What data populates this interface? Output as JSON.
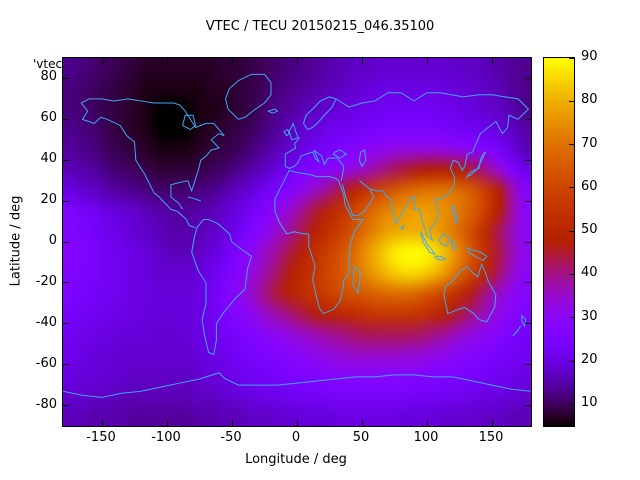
{
  "title": "VTEC / TECU 20150215_046.35100",
  "key_label": "'vtec_",
  "axes": {
    "xlabel": "Longitude / deg",
    "ylabel": "Latitude / deg",
    "xlim": [
      -180,
      180
    ],
    "ylim": [
      -90,
      90
    ],
    "x_ticks": [
      -150,
      -100,
      -50,
      0,
      50,
      100,
      150
    ],
    "y_ticks": [
      80,
      60,
      40,
      20,
      0,
      -20,
      -40,
      -60,
      -80
    ]
  },
  "colorbar": {
    "range": [
      5,
      90
    ],
    "ticks": [
      90,
      80,
      70,
      60,
      50,
      40,
      30,
      20,
      10
    ],
    "palette": "gnuplot rgbformulae 7,5,15 (black-purple-violet-red-orange-yellow)"
  },
  "chart_data": {
    "type": "heatmap",
    "title": "VTEC / TECU 20150215_046.35100",
    "xlabel": "Longitude / deg",
    "ylabel": "Latitude / deg",
    "units": "TECU",
    "value_range": [
      5,
      90
    ],
    "grid": {
      "lon_centers_start": -175,
      "lon_step": 10,
      "lat_centers_start": 85,
      "lat_step": -10,
      "cols": 36,
      "rows": 18
    },
    "values": [
      [
        13,
        12,
        11,
        10,
        9,
        8,
        7,
        7,
        7,
        7,
        7,
        7,
        8,
        8,
        9,
        10,
        11,
        12,
        13,
        14,
        15,
        16,
        17,
        17,
        18,
        18,
        18,
        18,
        18,
        18,
        17,
        17,
        16,
        15,
        14,
        13
      ],
      [
        12,
        11,
        10,
        9,
        8,
        7,
        6,
        6,
        6,
        6,
        6,
        7,
        7,
        8,
        9,
        10,
        12,
        13,
        14,
        15,
        16,
        17,
        18,
        19,
        20,
        20,
        20,
        20,
        20,
        19,
        19,
        18,
        17,
        16,
        14,
        13
      ],
      [
        12,
        11,
        10,
        9,
        8,
        7,
        6,
        5,
        5,
        5,
        6,
        6,
        7,
        8,
        9,
        11,
        13,
        14,
        16,
        17,
        18,
        19,
        20,
        21,
        22,
        22,
        22,
        22,
        22,
        21,
        20,
        19,
        18,
        17,
        15,
        13
      ],
      [
        13,
        12,
        11,
        9,
        8,
        7,
        6,
        5,
        5,
        5,
        6,
        7,
        8,
        9,
        10,
        12,
        14,
        16,
        18,
        19,
        21,
        22,
        23,
        24,
        25,
        25,
        25,
        25,
        25,
        24,
        23,
        22,
        21,
        19,
        17,
        15
      ],
      [
        14,
        13,
        12,
        10,
        9,
        8,
        7,
        6,
        6,
        6,
        7,
        8,
        9,
        10,
        12,
        14,
        16,
        18,
        20,
        22,
        24,
        26,
        28,
        30,
        31,
        32,
        33,
        33,
        33,
        32,
        31,
        29,
        27,
        24,
        20,
        16
      ],
      [
        16,
        15,
        14,
        12,
        11,
        10,
        9,
        8,
        8,
        8,
        9,
        10,
        11,
        13,
        15,
        17,
        20,
        22,
        25,
        27,
        29,
        31,
        34,
        37,
        40,
        43,
        45,
        47,
        48,
        48,
        47,
        44,
        40,
        34,
        27,
        21
      ],
      [
        20,
        18,
        17,
        15,
        14,
        13,
        12,
        11,
        11,
        11,
        12,
        13,
        15,
        17,
        19,
        22,
        25,
        28,
        32,
        36,
        40,
        45,
        50,
        56,
        61,
        65,
        68,
        70,
        71,
        71,
        69,
        65,
        58,
        48,
        38,
        28
      ],
      [
        26,
        24,
        22,
        20,
        19,
        18,
        16,
        15,
        14,
        14,
        15,
        16,
        18,
        20,
        23,
        27,
        31,
        35,
        40,
        45,
        50,
        55,
        61,
        67,
        72,
        75,
        77,
        78,
        77,
        75,
        71,
        66,
        58,
        48,
        38,
        30
      ],
      [
        27,
        25,
        23,
        21,
        20,
        18,
        17,
        16,
        15,
        15,
        16,
        17,
        19,
        22,
        26,
        30,
        35,
        39,
        44,
        49,
        54,
        59,
        65,
        71,
        76,
        79,
        80,
        80,
        78,
        74,
        68,
        61,
        52,
        43,
        36,
        30
      ],
      [
        28,
        26,
        24,
        22,
        21,
        20,
        19,
        17,
        16,
        16,
        17,
        19,
        22,
        26,
        30,
        35,
        39,
        44,
        49,
        54,
        59,
        64,
        70,
        77,
        83,
        88,
        90,
        90,
        87,
        81,
        73,
        63,
        53,
        44,
        37,
        31
      ],
      [
        27,
        25,
        24,
        22,
        21,
        20,
        19,
        18,
        18,
        18,
        19,
        21,
        24,
        28,
        33,
        37,
        42,
        47,
        52,
        56,
        61,
        65,
        70,
        75,
        80,
        84,
        86,
        85,
        82,
        76,
        68,
        59,
        50,
        42,
        35,
        30
      ],
      [
        26,
        24,
        23,
        22,
        21,
        20,
        20,
        19,
        19,
        19,
        20,
        22,
        26,
        30,
        35,
        40,
        45,
        49,
        53,
        56,
        59,
        62,
        64,
        66,
        68,
        69,
        69,
        67,
        63,
        58,
        52,
        46,
        40,
        35,
        31,
        28
      ],
      [
        24,
        23,
        22,
        21,
        20,
        20,
        19,
        19,
        19,
        19,
        20,
        22,
        25,
        28,
        31,
        35,
        38,
        41,
        44,
        47,
        49,
        51,
        53,
        55,
        56,
        57,
        56,
        55,
        52,
        48,
        44,
        40,
        36,
        32,
        29,
        26
      ],
      [
        22,
        21,
        20,
        20,
        19,
        19,
        19,
        18,
        18,
        19,
        20,
        21,
        23,
        25,
        27,
        29,
        31,
        33,
        35,
        37,
        39,
        40,
        42,
        43,
        43,
        43,
        43,
        42,
        40,
        38,
        35,
        33,
        30,
        28,
        25,
        23
      ],
      [
        21,
        20,
        19,
        19,
        18,
        18,
        18,
        18,
        18,
        18,
        19,
        20,
        21,
        23,
        24,
        26,
        27,
        29,
        30,
        32,
        33,
        34,
        35,
        35,
        35,
        35,
        34,
        34,
        32,
        31,
        29,
        28,
        26,
        24,
        23,
        22
      ],
      [
        20,
        19,
        19,
        18,
        18,
        17,
        17,
        17,
        17,
        17,
        18,
        19,
        20,
        21,
        22,
        23,
        24,
        25,
        26,
        27,
        28,
        29,
        29,
        29,
        29,
        29,
        28,
        28,
        27,
        26,
        25,
        24,
        23,
        22,
        21,
        20
      ],
      [
        18,
        18,
        17,
        17,
        16,
        16,
        16,
        16,
        16,
        16,
        17,
        17,
        18,
        19,
        20,
        21,
        21,
        22,
        23,
        23,
        24,
        24,
        24,
        24,
        24,
        24,
        24,
        23,
        23,
        22,
        22,
        21,
        20,
        20,
        19,
        18
      ],
      [
        16,
        16,
        15,
        15,
        15,
        14,
        14,
        14,
        14,
        14,
        15,
        15,
        16,
        16,
        17,
        17,
        18,
        18,
        19,
        19,
        19,
        20,
        20,
        20,
        20,
        20,
        19,
        19,
        19,
        18,
        18,
        18,
        17,
        17,
        16,
        16
      ]
    ]
  },
  "coastlines": {
    "color": "#3fa9f5",
    "paths": [
      "M -166,-68 L -161,-64 -165,-60 -156,-58 -151,-61 -146,-60 -136,-57 -131,-52 -125,-49 -124,-40 -117,-33 -110,-24 -106,-22 -97,-16 -92,-15 -85,-11 -83,-8 -78,-7",
      "M -77,-7 L -79,-2 -81,5 -76,14 -70,20 -70,30 -73,38 -71,46 -68,54 -64,55 -62,48 -62,40 -57,35 -48,28 -40,23 -38,13 -35,7 -44,3 -50,0 -52,-4 -61,-9 -68,-11 -72,-11 Z",
      "M -88,-16 L -91,-19 -97,-22 -97,-28 -91,-29 -84,-30 -81,-25 -80,-27 -76,-35 -74,-40 -70,-42 -66,-45 -60,-46 -66,-50 -60,-53 -56,-52 -64,-58 -70,-58 -78,-56 -82,-60 -86,-64 -90,-67 -95,-68 -110,-68 -120,-69 -130,-70 -141,-69 -150,-70 -160,-70 -166,-68",
      "M -45,-60 L -53,-65 -55,-70 -52,-75 -45,-79 -35,-82 -25,-82 -20,-78 -20,-72 -25,-68 -32,-65 -40,-61 Z",
      "M 5,-58 L 7,-62 12,-65 18,-69 25,-71 30,-70 27,-66 21,-62 17,-59 12,-56 8,-55 5,-58",
      "M -4,-50 L -6,-54 -3,-58 -1,-54 1,-51 -4,-50",
      "M -8,-52 L -10,-54 -7,-55 -6,-53 -8,-52",
      "M 2,-51 L -2,-48 -1,-46 -9,-43 -9,-37 -6,-36 -2,-37 1,-39 3,-42 7,-43 12,-44 14,-41 17,-39 15,-42 13,-45 19,-42 21,-38 24,-41 27,-41 31,-41 36,-37 35,-33 34,-30",
      "M -6,-35 L 0,-34 10,-33 15,-32 20,-32 25,-32 30,-31 32,-30 36,-23 37,-18 43,-11 48,-11 51,-11 44,-5 41,1 40,7 40,15 36,19 35,24 33,29 28,33 20,35 17,32 15,27 12,18 14,12 9,2 9,-4 5,-4 -2,-5 -8,-4 -13,-9 -17,-15 -17,-21 -10,-30 Z",
      "M 44,12 L 49,15 47,25 43,21 Z",
      "M 35,-28 L 38,-21 43,-13 47,-13 52,-15 59,-22 56,-26 48,-30",
      "M 56,-26 L 61,-25 66,-25 68,-23 72,-21 73,-16 76,-9 80,-13 84,-18 88,-22 91,-22 90,-16 94,-16 97,-9 100,-3 104,-1 102,-6 106,-9 109,-13 108,-17 106,-21 110,-21 113,-22 117,-24 121,-28 121,-32 118,-36 120,-40 124,-39 127,-35 129,-37 131,-43 135,-44 141,-53 153,-59 158,-53 162,-56 163,-62 170,-60 178,-65 170,-70 160,-71 150,-72 140,-72 128,-71 110,-73 100,-73 90,-69 80,-73 70,-73 60,-69 50,-68 40,-66 30,-70",
      "M 80,-7 L 82,-8 81,-6 Z",
      "M 95,-5 L 100,1 104,4 106,6 102,5 97,0 Z",
      "M 106,7 L 110,7 114,8 112,9 107,8 Z",
      "M 109,-1 L 113,-4 117,-2 115,2 111,1 Z",
      "M 119,-1 L 122,1 121,4 119,2 Z",
      "M 131,3 L 136,4 141,5 146,7 143,9 137,7 132,5 Z",
      "M 120,-18 L 122,-14 124,-11 122,-9 121,-13 119,-16 Z",
      "M 130,-31 L 133,-34 136,-35 140,-36 141,-40 143,-43 145,-44 142,-40 139,-36 134,-33 131,-32",
      "M 114,22 L 120,19 126,14 131,12 135,15 139,17 142,11 145,15 147,19 153,26 152,32 146,39 140,38 136,35 129,32 124,33 116,35 113,26 Z",
      "M 173,36 L 176,38 175,41 173,39 Z",
      "M 172,41 L 169,44 166,46 170,43 Z",
      "M -180,73 L -165,75 -150,76 -135,74 -120,73 -105,71 -90,69 -75,67 -60,64 -55,67 -45,70 -30,70 -15,70 0,69 15,68 30,67 45,66 60,66 75,65 90,65 105,66 120,66 135,68 150,70 165,72 180,73",
      "M 50,-37 L 53,-40 52,-45 49,-44 48,-40 Z",
      "M 28,-43 L 33,-41 38,-43 33,-45 29,-44 Z",
      "M -88,-57 L -82,-55 -78,-57 -80,-62 -86,-62 Z",
      "M -22,-64 L -17,-65 -15,-64 -19,-63 Z",
      "M -84,-22 L -78,-21 -74,-20"
    ]
  }
}
